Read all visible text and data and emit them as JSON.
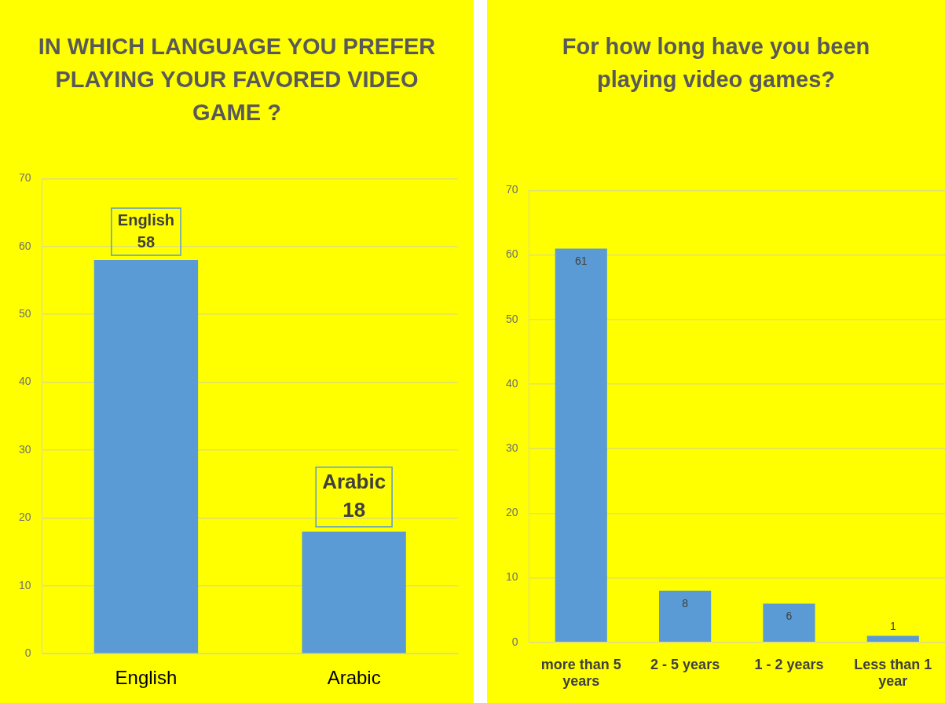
{
  "chart_data": [
    {
      "type": "bar",
      "title": "IN WHICH LANGUAGE YOU PREFER PLAYING YOUR FAVORED VIDEO GAME ?",
      "categories": [
        "English",
        "Arabic"
      ],
      "values": [
        58,
        18
      ],
      "color": "#5b9bd5",
      "ylim": [
        0,
        70
      ],
      "yticks": [
        0,
        10,
        20,
        30,
        40,
        50,
        60,
        70
      ],
      "grid": "y",
      "data_labels": true
    },
    {
      "type": "bar",
      "title": "For how long have you been playing video games?",
      "categories": [
        "more than 5 years",
        "2 - 5 years",
        "1 - 2 years",
        "Less than 1 year"
      ],
      "values": [
        61,
        8,
        6,
        1
      ],
      "color": "#5b9bd5",
      "ylim": [
        0,
        70
      ],
      "yticks": [
        0,
        10,
        20,
        30,
        40,
        50,
        60,
        70
      ],
      "grid": "y",
      "data_labels": true
    }
  ]
}
